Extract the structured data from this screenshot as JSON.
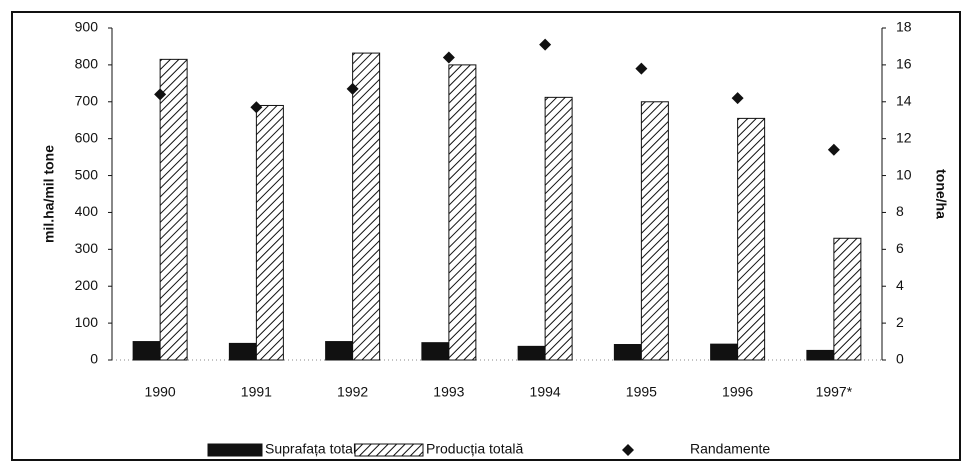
{
  "chart_data": {
    "type": "bar",
    "categories": [
      "1990",
      "1991",
      "1992",
      "1993",
      "1994",
      "1995",
      "1996",
      "1997*"
    ],
    "series": [
      {
        "name": "Suprafața totală",
        "type": "bar",
        "color": "#111111",
        "hatch": false,
        "values": [
          50,
          45,
          50,
          47,
          37,
          42,
          43,
          26
        ]
      },
      {
        "name": "Producția totală",
        "type": "bar",
        "color": "#111111",
        "hatch": true,
        "values": [
          815,
          690,
          832,
          800,
          712,
          700,
          655,
          330
        ]
      },
      {
        "name": "Randamente",
        "type": "scatter",
        "axis": "y2",
        "color": "#111111",
        "values": [
          14.4,
          13.7,
          14.7,
          16.4,
          17.1,
          15.8,
          14.2,
          11.4
        ]
      }
    ],
    "ylabel": "mil.ha/mil tone",
    "y2label": "tone/ha",
    "ylim": [
      0,
      900
    ],
    "yticks": [
      0,
      100,
      200,
      300,
      400,
      500,
      600,
      700,
      800,
      900
    ],
    "y2lim": [
      0,
      18
    ],
    "y2ticks": [
      0,
      2,
      4,
      6,
      8,
      10,
      12,
      14,
      16,
      18
    ],
    "legend": "bottom"
  }
}
